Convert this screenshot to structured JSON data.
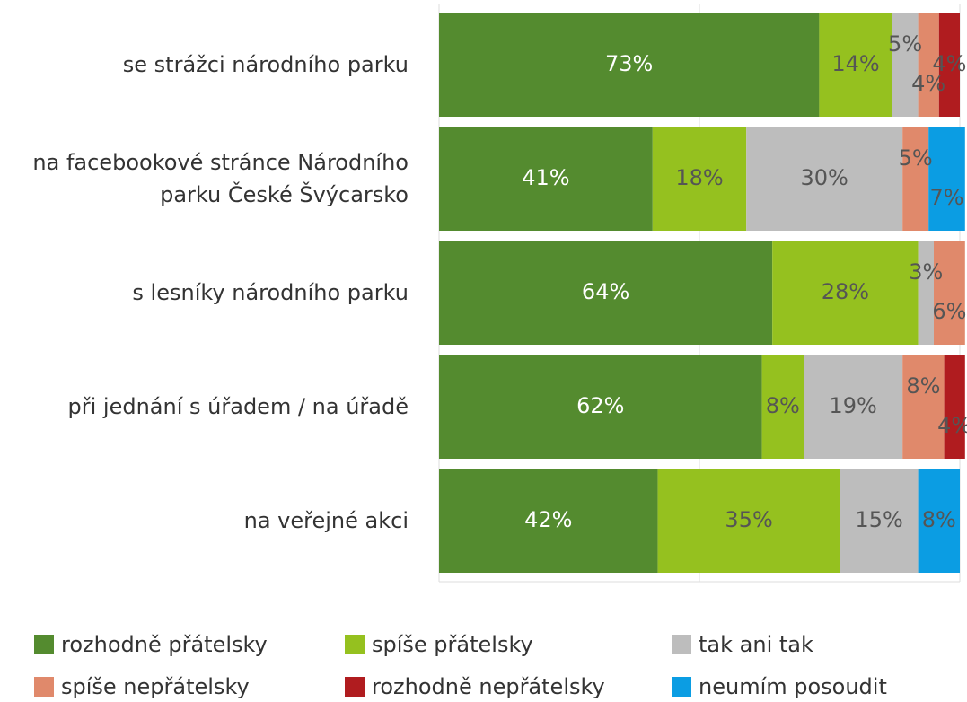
{
  "chart_data": {
    "type": "bar",
    "orientation": "horizontal",
    "stacked": true,
    "categories": [
      "se strážci národního parku",
      "na facebookové stránce Národního parku České Švýcarsko",
      "s lesníky národního parku",
      "při jednání s úřadem / na úřadě",
      "na veřejné akci"
    ],
    "series": [
      {
        "name": "rozhodně přátelsky",
        "color": "#548b2f",
        "values": [
          73,
          41,
          64,
          62,
          42
        ],
        "value_labels": [
          "73%",
          "41%",
          "64%",
          "62%",
          "42%"
        ]
      },
      {
        "name": "spíše přátelsky",
        "color": "#95c11f",
        "values": [
          14,
          18,
          28,
          8,
          35
        ],
        "value_labels": [
          "14%",
          "18%",
          "28%",
          "8%",
          "35%"
        ]
      },
      {
        "name": "tak ani tak",
        "color": "#bdbdbd",
        "values": [
          5,
          30,
          3,
          19,
          15
        ],
        "value_labels": [
          "5%",
          "30%",
          "3%",
          "19%",
          "15%"
        ]
      },
      {
        "name": "spíše nepřátelsky",
        "color": "#e0896b",
        "values": [
          4,
          5,
          6,
          8,
          null
        ],
        "value_labels": [
          "4%",
          "5%",
          "6%",
          "8%",
          null
        ]
      },
      {
        "name": "rozhodně nepřátelsky",
        "color": "#b01c1f",
        "values": [
          4,
          null,
          null,
          4,
          null
        ],
        "value_labels": [
          "4%",
          null,
          null,
          "4%",
          null
        ]
      },
      {
        "name": "neumím posoudit",
        "color": "#0b9de3",
        "values": [
          null,
          7,
          null,
          null,
          8
        ],
        "value_labels": [
          null,
          "7%",
          null,
          null,
          "8%"
        ]
      }
    ],
    "xlim": [
      0,
      100
    ],
    "xticks": [
      0,
      50,
      100
    ],
    "grid": true,
    "legend": "bottom"
  }
}
